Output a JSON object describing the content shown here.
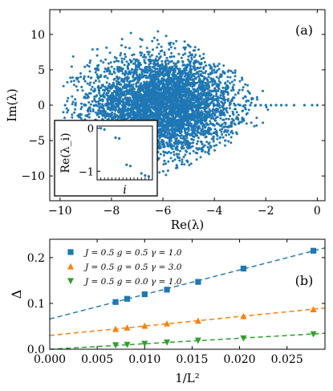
{
  "chart_data": [
    {
      "type": "scatter",
      "panel_label": "(a)",
      "xlabel": "Re(λ)",
      "ylabel": "Im(λ)",
      "xlim": [
        -10.4,
        0.3
      ],
      "ylim": [
        -13.5,
        13.5
      ],
      "xticks": [
        -10,
        -8,
        -6,
        -4,
        -2,
        0
      ],
      "yticks": [
        -10,
        -5,
        0,
        5,
        10
      ],
      "series": [
        {
          "color": "#1f77b4",
          "cloud": {
            "center_re": -6.0,
            "center_im": 0.0,
            "sigma_re": 1.4,
            "sigma_im": 3.4,
            "extent_re": [
              -9.9,
              -1.9
            ],
            "extent_im": [
              -12.5,
              12.5
            ],
            "count": 5000
          },
          "real_axis_points": [
            -9.8,
            -9.4,
            -9.0,
            -8.6,
            -8.2,
            -3.2,
            -3.0,
            -2.8,
            -2.6,
            -2.4,
            -2.2,
            -2.0,
            -1.8,
            -1.6,
            -1.4,
            -1.2,
            -0.9,
            -0.5,
            -0.2,
            0.0
          ]
        }
      ],
      "inset": {
        "type": "scatter",
        "ylabel": "Re(λ_i)",
        "xlabel": "i",
        "ylim": [
          -1.2,
          0.05
        ],
        "yticks": [
          0,
          -1
        ],
        "points": [
          {
            "i": 1,
            "value": 0.0
          },
          {
            "i": 2,
            "value": -0.03
          },
          {
            "i": 5,
            "value": -0.22
          },
          {
            "i": 6,
            "value": -0.24
          },
          {
            "i": 8,
            "value": -0.85
          },
          {
            "i": 9,
            "value": -0.88
          },
          {
            "i": 12,
            "value": -1.05
          },
          {
            "i": 13,
            "value": -1.1
          },
          {
            "i": 14,
            "value": -1.12
          }
        ]
      }
    },
    {
      "type": "scatter",
      "panel_label": "(b)",
      "xlabel": "1/L²",
      "ylabel": "Δ",
      "xlim": [
        0.0,
        0.029
      ],
      "ylim": [
        0.0,
        0.24
      ],
      "xticks": [
        0.0,
        0.005,
        0.01,
        0.015,
        0.02,
        0.025
      ],
      "xtick_labels": [
        "0.000",
        "0.005",
        "0.010",
        "0.015",
        "0.020",
        "0.025"
      ],
      "yticks": [
        0.0,
        0.1,
        0.2
      ],
      "ytick_labels": [
        "0.0",
        "0.1",
        "0.2"
      ],
      "legend_position": "top-left",
      "series": [
        {
          "name": "J = 0.5 g = 0.5 γ = 1.0",
          "color": "#1f77b4",
          "marker": "square",
          "x": [
            0.00694,
            0.00816,
            0.01,
            0.01235,
            0.01563,
            0.02041,
            0.02778
          ],
          "y": [
            0.103,
            0.11,
            0.12,
            0.13,
            0.147,
            0.176,
            0.215
          ],
          "fit": {
            "intercept": 0.066,
            "slope": 5.35
          }
        },
        {
          "name": "J = 0.5 g = 0.5 γ = 3.0",
          "color": "#ff7f0e",
          "marker": "triangle-up",
          "x": [
            0.00694,
            0.00816,
            0.01,
            0.01235,
            0.01563,
            0.02041,
            0.02778
          ],
          "y": [
            0.044,
            0.047,
            0.051,
            0.056,
            0.062,
            0.072,
            0.087
          ],
          "fit": {
            "intercept": 0.03,
            "slope": 2.07
          }
        },
        {
          "name": "J = 0.5 g = 0.0 γ = 1.0",
          "color": "#2ca02c",
          "marker": "triangle-down",
          "x": [
            0.00694,
            0.00816,
            0.01,
            0.01235,
            0.01563,
            0.02041,
            0.02778
          ],
          "y": [
            0.009,
            0.01,
            0.012,
            0.015,
            0.019,
            0.024,
            0.033
          ],
          "fit": {
            "intercept": 0.0,
            "slope": 1.2
          }
        }
      ]
    }
  ]
}
